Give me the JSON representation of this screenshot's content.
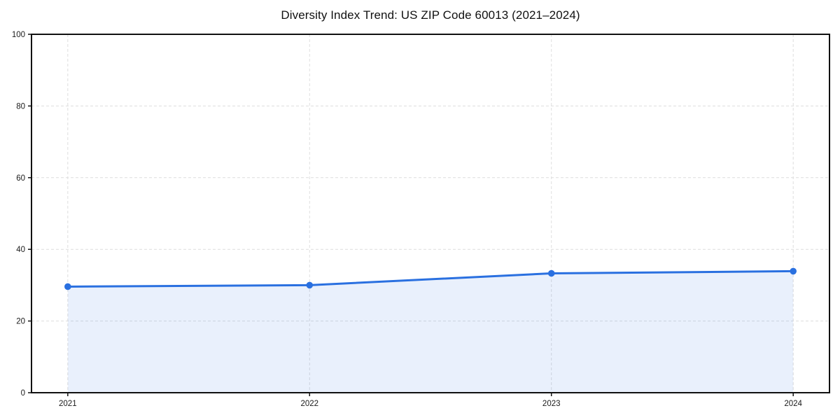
{
  "chart_data": {
    "type": "area",
    "title": "Diversity Index Trend: US ZIP Code 60013 (2021–2024)",
    "series_name": "Diversity Index",
    "x": [
      2021,
      2022,
      2023,
      2024
    ],
    "values": [
      29.6,
      30.0,
      33.3,
      33.9
    ],
    "xticks": [
      2021,
      2022,
      2023,
      2024
    ],
    "yticks": [
      0,
      20,
      40,
      60,
      80,
      100
    ],
    "ylim": [
      0,
      100
    ],
    "xlabel": "",
    "ylabel": "",
    "grid": true,
    "grid_style": "dashed",
    "legend_position": "none",
    "fill_opacity": 0.1,
    "colors": {
      "line": "#2a70e0",
      "fill": "#e9f1fc",
      "grid": "#dedede",
      "spine": "#111111",
      "text": "#1a1a1a",
      "background": "#ffffff"
    }
  }
}
